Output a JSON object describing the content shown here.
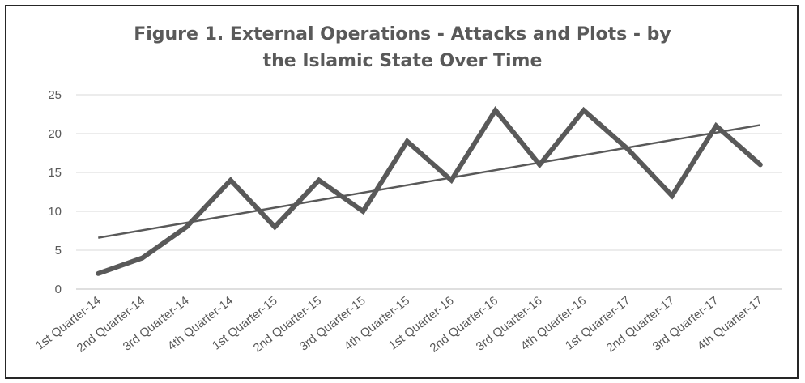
{
  "chart_data": {
    "type": "line",
    "title_lines": [
      "Figure 1. External Operations - Attacks and Plots - by",
      "the Islamic State Over Time"
    ],
    "categories": [
      "1st Quarter-14",
      "2nd Quarter-14",
      "3rd Quarter-14",
      "4th Quarter-14",
      "1st Quarter-15",
      "2nd Quarter-15",
      "3rd Quarter-15",
      "4th Quarter-15",
      "1st Quarter-16",
      "2nd Quarter-16",
      "3rd Quarter-16",
      "4th Quarter-16",
      "1st Quarter-17",
      "2nd Quarter-17",
      "3rd Quarter-17",
      "4th Quarter-17"
    ],
    "series": [
      {
        "values": [
          2,
          4,
          8,
          14,
          8,
          14,
          10,
          19,
          14,
          23,
          16,
          23,
          18,
          12,
          21,
          16
        ],
        "color": "#595959"
      }
    ],
    "trendline": {
      "type": "linear",
      "start": 6.6,
      "end": 21.1,
      "color": "#595959"
    },
    "yticks": [
      0,
      5,
      10,
      15,
      20,
      25
    ],
    "ylim": [
      0,
      25
    ],
    "grid": true,
    "legend": "none",
    "xlabel": "",
    "ylabel": ""
  }
}
